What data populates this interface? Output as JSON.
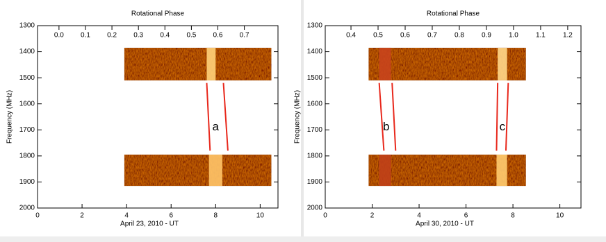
{
  "chart_data": [
    {
      "type": "dynamic-spectrum",
      "title": "Rotational Phase",
      "xlabel": "April 23, 2010 - UT",
      "ylabel": "Frequency (MHz)",
      "xlim": [
        0,
        10.8
      ],
      "xticks": [
        0,
        2,
        4,
        6,
        8,
        10
      ],
      "x2lim": [
        -0.081,
        0.827
      ],
      "x2ticks": [
        {
          "value": 0,
          "label": "0.0"
        },
        0.1,
        0.2,
        0.3,
        0.4,
        0.5,
        0.6,
        0.7
      ],
      "ylim": [
        1300,
        2000
      ],
      "yticks": [
        1300,
        1400,
        1500,
        1600,
        1700,
        1800,
        1900,
        2000
      ],
      "blocks": [
        {
          "x": [
            3.9,
            10.5
          ],
          "y": [
            1385,
            1510
          ]
        },
        {
          "x": [
            3.9,
            10.5
          ],
          "y": [
            1795,
            1915
          ]
        }
      ],
      "bands": [
        {
          "x": [
            7.6,
            8.0
          ],
          "y": [
            1385,
            1510
          ],
          "color": "#ffd27a"
        },
        {
          "x": [
            7.7,
            8.3
          ],
          "y": [
            1795,
            1915
          ],
          "color": "#ffc468"
        }
      ],
      "line_color": "#e8281c",
      "annotations": [
        {
          "text": "a",
          "at": [
            8.0,
            1690
          ],
          "lines": [
            [
              [
                7.6,
                1520
              ],
              [
                7.75,
                1780
              ]
            ],
            [
              [
                8.35,
                1520
              ],
              [
                8.55,
                1780
              ]
            ]
          ]
        }
      ]
    },
    {
      "type": "dynamic-spectrum",
      "title": "Rotational Phase",
      "xlabel": "April 30, 2010 - UT",
      "ylabel": "Frequency (MHz)",
      "xlim": [
        0,
        10.9
      ],
      "xticks": [
        0,
        2,
        4,
        6,
        8,
        10
      ],
      "x2lim": [
        0.305,
        1.249
      ],
      "x2ticks": [
        0.4,
        0.5,
        0.6,
        0.7,
        0.8,
        0.9,
        {
          "value": 1,
          "label": "1.0"
        },
        1.1,
        1.2
      ],
      "ylim": [
        1300,
        2000
      ],
      "yticks": [
        1300,
        1400,
        1500,
        1600,
        1700,
        1800,
        1900,
        2000
      ],
      "blocks": [
        {
          "x": [
            1.85,
            8.55
          ],
          "y": [
            1385,
            1510
          ]
        },
        {
          "x": [
            1.85,
            8.55
          ],
          "y": [
            1795,
            1915
          ]
        }
      ],
      "bands": [
        {
          "x": [
            2.3,
            2.8
          ],
          "y": [
            1385,
            1510
          ],
          "color": "#c8441c"
        },
        {
          "x": [
            2.3,
            2.8
          ],
          "y": [
            1795,
            1915
          ],
          "color": "#c04018"
        },
        {
          "x": [
            7.35,
            7.75
          ],
          "y": [
            1385,
            1510
          ],
          "color": "#ffd88a"
        },
        {
          "x": [
            7.3,
            7.75
          ],
          "y": [
            1795,
            1915
          ],
          "color": "#ffcc70"
        }
      ],
      "line_color": "#e8281c",
      "annotations": [
        {
          "text": "b",
          "at": [
            2.6,
            1690
          ],
          "lines": [
            [
              [
                2.3,
                1520
              ],
              [
                2.5,
                1780
              ]
            ],
            [
              [
                2.85,
                1520
              ],
              [
                3.0,
                1780
              ]
            ]
          ]
        },
        {
          "text": "c",
          "at": [
            7.55,
            1690
          ],
          "lines": [
            [
              [
                7.35,
                1520
              ],
              [
                7.3,
                1780
              ]
            ],
            [
              [
                7.8,
                1520
              ],
              [
                7.7,
                1780
              ]
            ]
          ]
        }
      ]
    }
  ]
}
